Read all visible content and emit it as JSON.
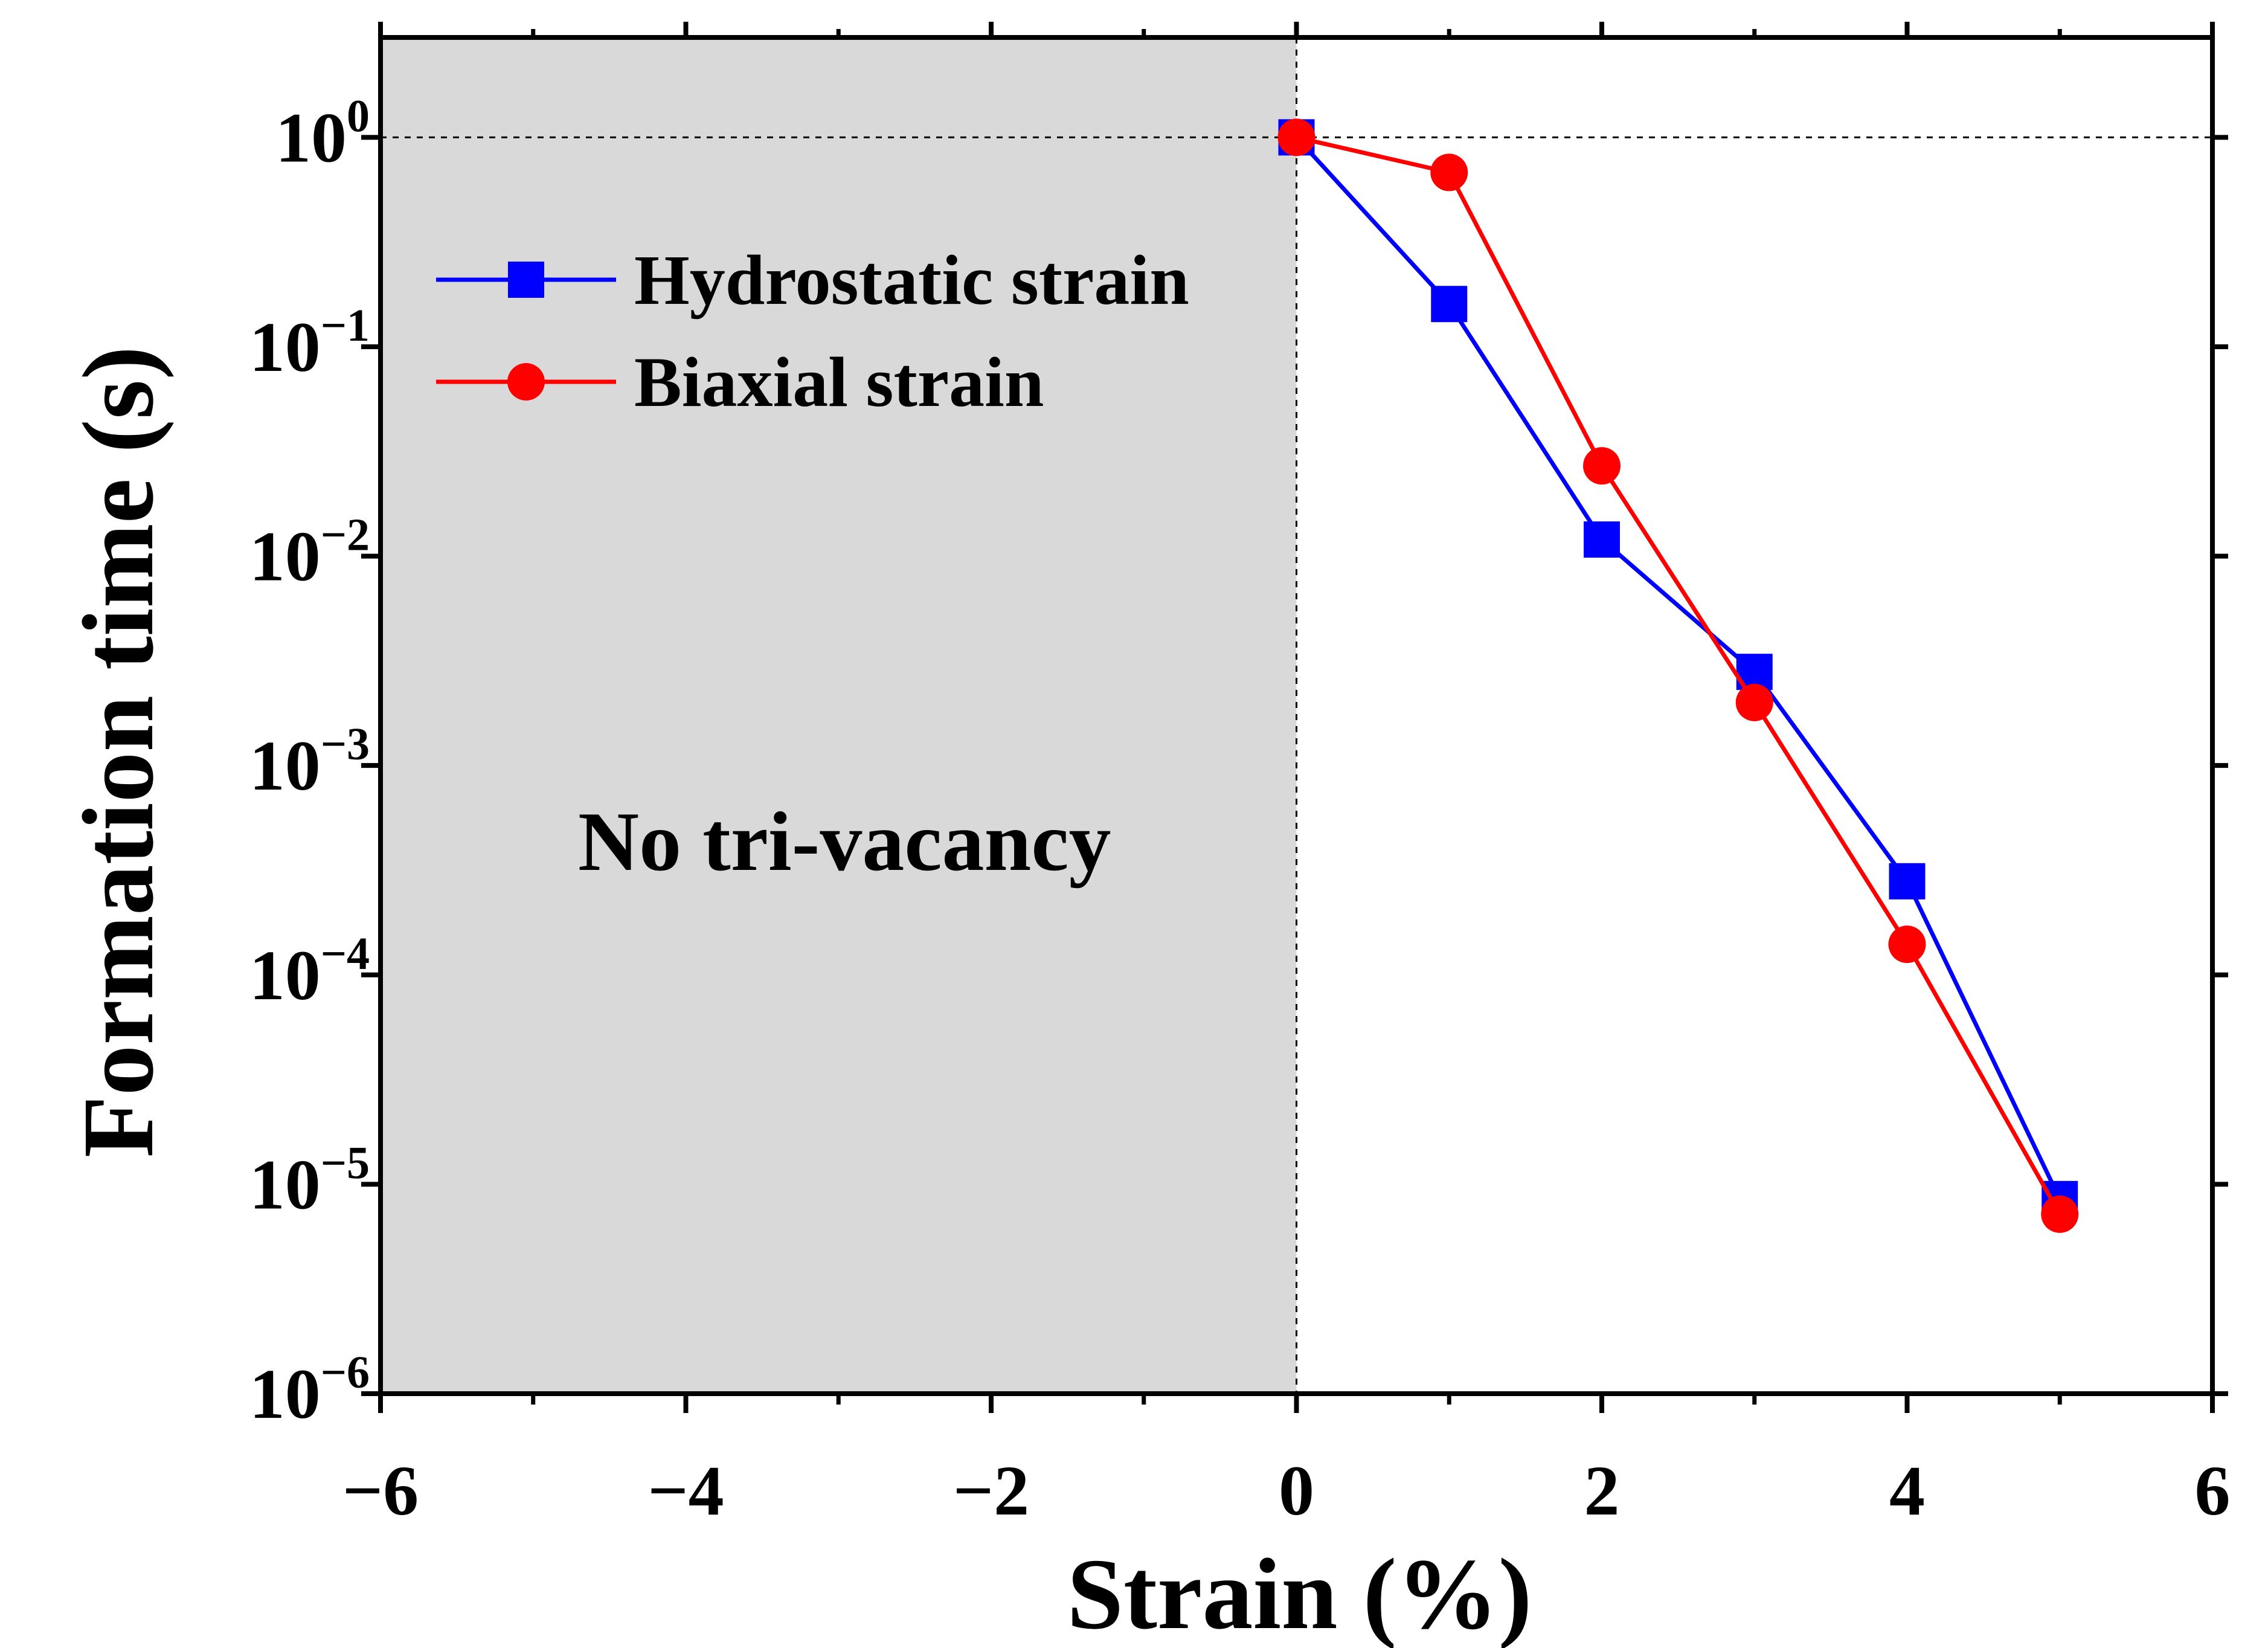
{
  "chart_data": {
    "type": "line",
    "title": "",
    "xlabel": "Strain (%)",
    "ylabel": "Formation time (s)",
    "xlim": [
      -6,
      6
    ],
    "x_ticks": [
      -6,
      -4,
      -2,
      0,
      2,
      4,
      6
    ],
    "x_tick_labels": [
      "−6",
      "−4",
      "−2",
      "0",
      "2",
      "4",
      "6"
    ],
    "y_scale": "log",
    "ylim": [
      1e-06,
      3
    ],
    "y_ticks": [
      {
        "value": 1,
        "base": "10",
        "exp": "0"
      },
      {
        "value": 0.1,
        "base": "10",
        "exp": "−1"
      },
      {
        "value": 0.01,
        "base": "10",
        "exp": "−2"
      },
      {
        "value": 0.001,
        "base": "10",
        "exp": "−3"
      },
      {
        "value": 0.0001,
        "base": "10",
        "exp": "−4"
      },
      {
        "value": 1e-05,
        "base": "10",
        "exp": "−5"
      },
      {
        "value": 1e-06,
        "base": "10",
        "exp": "−6"
      }
    ],
    "reference_lines": {
      "x": 0,
      "y": 1
    },
    "shaded_region": {
      "x_from": -6,
      "x_to": 0,
      "label": "No tri-vacancy",
      "color": "#d9d9d9"
    },
    "legend_position": "upper-left",
    "series": [
      {
        "name": "Hydrostatic strain",
        "color": "#0000ff",
        "marker": "square",
        "x": [
          0,
          1,
          2,
          3,
          4,
          5
        ],
        "values": [
          1.0,
          0.16,
          0.012,
          0.0028,
          0.00028,
          8.5e-06
        ]
      },
      {
        "name": "Biaxial strain",
        "color": "#ff0000",
        "marker": "circle",
        "x": [
          0,
          1,
          2,
          3,
          4,
          5
        ],
        "values": [
          1.0,
          0.68,
          0.027,
          0.002,
          0.00014,
          7.2e-06
        ]
      }
    ]
  }
}
